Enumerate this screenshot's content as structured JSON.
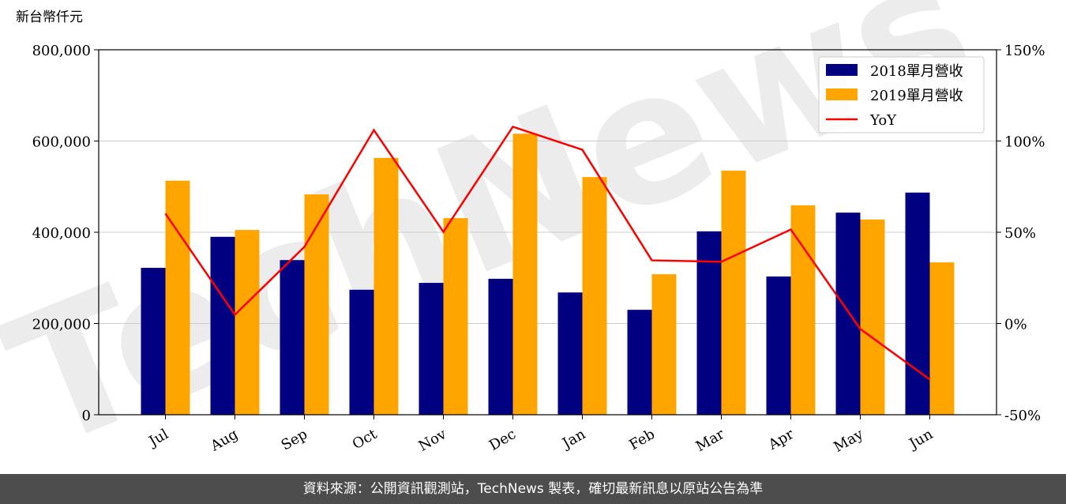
{
  "chart_data": {
    "type": "bar_line",
    "ylabel": "新台幣仟元",
    "watermark": "TechNews",
    "categories": [
      "Jul",
      "Aug",
      "Sep",
      "Oct",
      "Nov",
      "Dec",
      "Jan",
      "Feb",
      "Mar",
      "Apr",
      "May",
      "Jun"
    ],
    "series": [
      {
        "name": "2018單月營收",
        "color": "#000080",
        "kind": "bar",
        "values": [
          322000,
          390000,
          339000,
          274000,
          289000,
          298000,
          268000,
          230000,
          402000,
          303000,
          443000,
          487000
        ]
      },
      {
        "name": "2019單月營收",
        "color": "#ffa500",
        "kind": "bar",
        "values": [
          513000,
          405000,
          483000,
          563000,
          431000,
          616000,
          521000,
          308000,
          535000,
          459000,
          428000,
          334000
        ]
      },
      {
        "name": "YoY",
        "color": "#ff0000",
        "kind": "line",
        "axis": "y2",
        "values": [
          60.2,
          4.8,
          42,
          106,
          50.2,
          107.8,
          95.2,
          34.6,
          33.8,
          51.5,
          -3,
          -30.7
        ]
      }
    ],
    "ylim": [
      0,
      800000
    ],
    "yticks": [
      0,
      {
        "value": 200000,
        "label": "200,000"
      },
      {
        "value": 400000,
        "label": "400,000"
      },
      {
        "value": 600000,
        "label": "600,000"
      },
      {
        "value": 800000,
        "label": "800,000"
      }
    ],
    "y2lim": [
      -50,
      150
    ],
    "y2ticks": [
      {
        "value": -50,
        "label": "-50%"
      },
      {
        "value": 0,
        "label": "0%"
      },
      {
        "value": 50,
        "label": "50%"
      },
      {
        "value": 100,
        "label": "100%"
      },
      {
        "value": 150,
        "label": "150%"
      }
    ],
    "grid": true,
    "legend": "upper right",
    "source": "資料來源：公開資訊觀測站，TechNews 製表，確切最新訊息以原站公告為準"
  }
}
